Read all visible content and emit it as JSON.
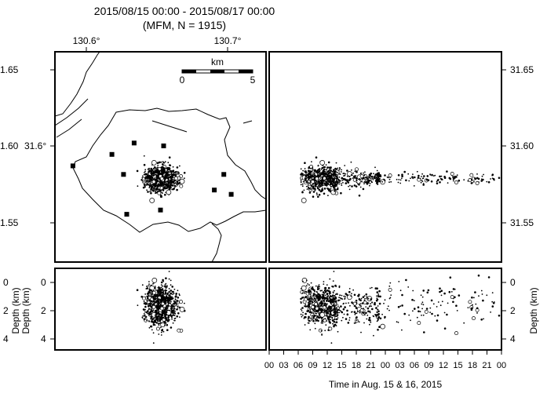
{
  "title": {
    "line1": "2015/08/15 00:00 - 2015/08/17 00:00",
    "line2": "(MFM, N = 1915)"
  },
  "colors": {
    "ink": "#000000",
    "background": "#ffffff"
  },
  "chart_data": [
    {
      "panel": "map",
      "type": "scatter",
      "x_tick_labels": [
        "130.6°",
        "130.7°"
      ],
      "x_ticks": [
        130.6,
        130.7
      ],
      "y_tick_labels_left": [
        "1.65",
        "1.60",
        "31.6°",
        "1.55"
      ],
      "y_ticks": [
        31.65,
        31.6,
        31.55
      ],
      "xlim": [
        130.555,
        130.755
      ],
      "ylim": [
        31.5245,
        31.672
      ],
      "scale_bar": {
        "unit": "km",
        "start_label": "0",
        "end_label": "5",
        "length_km": 5
      },
      "stations": [
        {
          "lon": 130.572,
          "lat": 31.592
        },
        {
          "lon": 130.609,
          "lat": 31.6
        },
        {
          "lon": 130.63,
          "lat": 31.608
        },
        {
          "lon": 130.62,
          "lat": 31.586
        },
        {
          "lon": 130.658,
          "lat": 31.606
        },
        {
          "lon": 130.715,
          "lat": 31.586
        },
        {
          "lon": 130.706,
          "lat": 31.575
        },
        {
          "lon": 130.722,
          "lat": 31.572
        },
        {
          "lon": 130.623,
          "lat": 31.558
        },
        {
          "lon": 130.655,
          "lat": 31.561
        }
      ],
      "epicenter_cluster": {
        "center_lon": 130.655,
        "center_lat": 31.583,
        "spread_lon": 0.012,
        "spread_lat": 0.01
      }
    },
    {
      "panel": "time-latitude",
      "type": "scatter",
      "y_tick_labels": [
        "31.65",
        "31.60",
        "31.55"
      ],
      "y_ticks": [
        31.65,
        31.6,
        31.55
      ],
      "ylim": [
        31.5245,
        31.672
      ]
    },
    {
      "panel": "longitude-depth",
      "type": "scatter",
      "y_tick_labels": [
        "0",
        "2",
        "4"
      ],
      "y_ticks": [
        0,
        2,
        4
      ],
      "ylabel": "Depth (km)",
      "ylim": [
        -0.8,
        5.1
      ]
    },
    {
      "panel": "time-depth",
      "type": "scatter",
      "y_tick_labels": [
        "0",
        "2",
        "4"
      ],
      "y_ticks": [
        0,
        2,
        4
      ],
      "ylabel": "Depth (km)",
      "ylim": [
        -0.8,
        5.1
      ],
      "xlabel": "Time in Aug. 15 & 16, 2015",
      "x_tick_labels": [
        "00",
        "03",
        "06",
        "09",
        "12",
        "15",
        "18",
        "21",
        "00",
        "03",
        "06",
        "09",
        "12",
        "15",
        "18",
        "21",
        "00"
      ],
      "xlim_hours": [
        0,
        48
      ]
    }
  ]
}
